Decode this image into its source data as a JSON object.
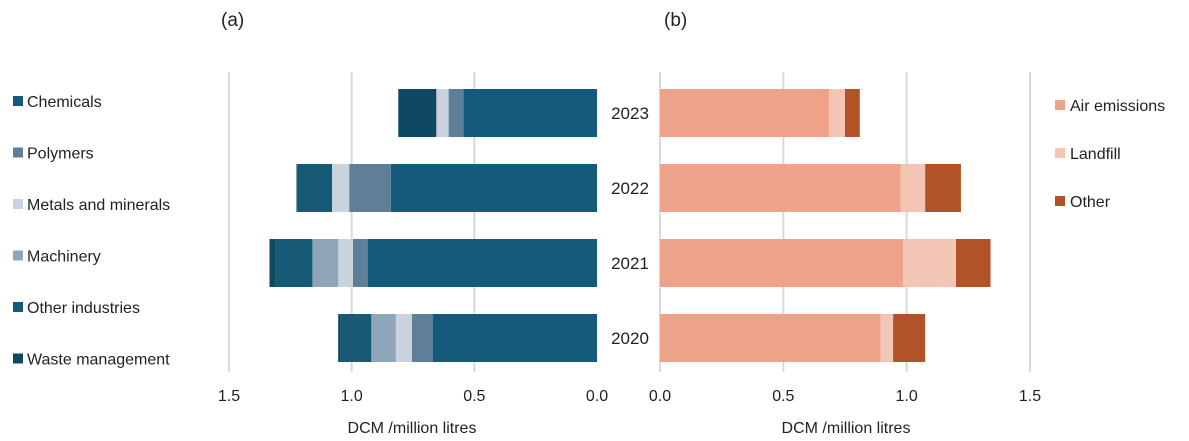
{
  "chart_data": [
    {
      "type": "bar",
      "orientation": "horizontal-reversed",
      "panel_label": "(a)",
      "xlabel": "DCM /million litres",
      "xlim": [
        0,
        1.5
      ],
      "xticks": [
        "1.5",
        "1.0",
        "0.5",
        "0.0"
      ],
      "categories": [
        "2023",
        "2022",
        "2021",
        "2020"
      ],
      "legend_position": "left",
      "series": [
        {
          "name": "Chemicals",
          "color": "#145a7a",
          "values": [
            0.545,
            0.84,
            0.935,
            0.67
          ]
        },
        {
          "name": "Polymers",
          "color": "#5f7f99",
          "values": [
            0.06,
            0.17,
            0.06,
            0.085
          ]
        },
        {
          "name": "Metals and minerals",
          "color": "#c9d3dd",
          "values": [
            0.05,
            0.07,
            0.06,
            0.065
          ]
        },
        {
          "name": "Machinery",
          "color": "#8fa6b9",
          "values": [
            0.0,
            0.0,
            0.105,
            0.1
          ]
        },
        {
          "name": "Other industries",
          "color": "#175a76",
          "values": [
            0.0,
            0.14,
            0.15,
            0.125
          ]
        },
        {
          "name": "Waste management",
          "color": "#0e4862",
          "values": [
            0.155,
            0.005,
            0.025,
            0.01
          ]
        }
      ]
    },
    {
      "type": "bar",
      "orientation": "horizontal",
      "panel_label": "(b)",
      "xlabel": "DCM /million litres",
      "xlim": [
        0,
        1.5
      ],
      "xticks": [
        "0.0",
        "0.5",
        "1.0",
        "1.5"
      ],
      "categories": [
        "2023",
        "2022",
        "2021",
        "2020"
      ],
      "legend_position": "right",
      "series": [
        {
          "name": "Air emissions",
          "color": "#efa28a",
          "values": [
            0.685,
            0.975,
            0.985,
            0.895
          ]
        },
        {
          "name": "Landfill",
          "color": "#f3c5b5",
          "values": [
            0.065,
            0.1,
            0.215,
            0.05
          ]
        },
        {
          "name": "Other",
          "color": "#b15326",
          "values": [
            0.06,
            0.145,
            0.14,
            0.13
          ]
        }
      ]
    }
  ]
}
